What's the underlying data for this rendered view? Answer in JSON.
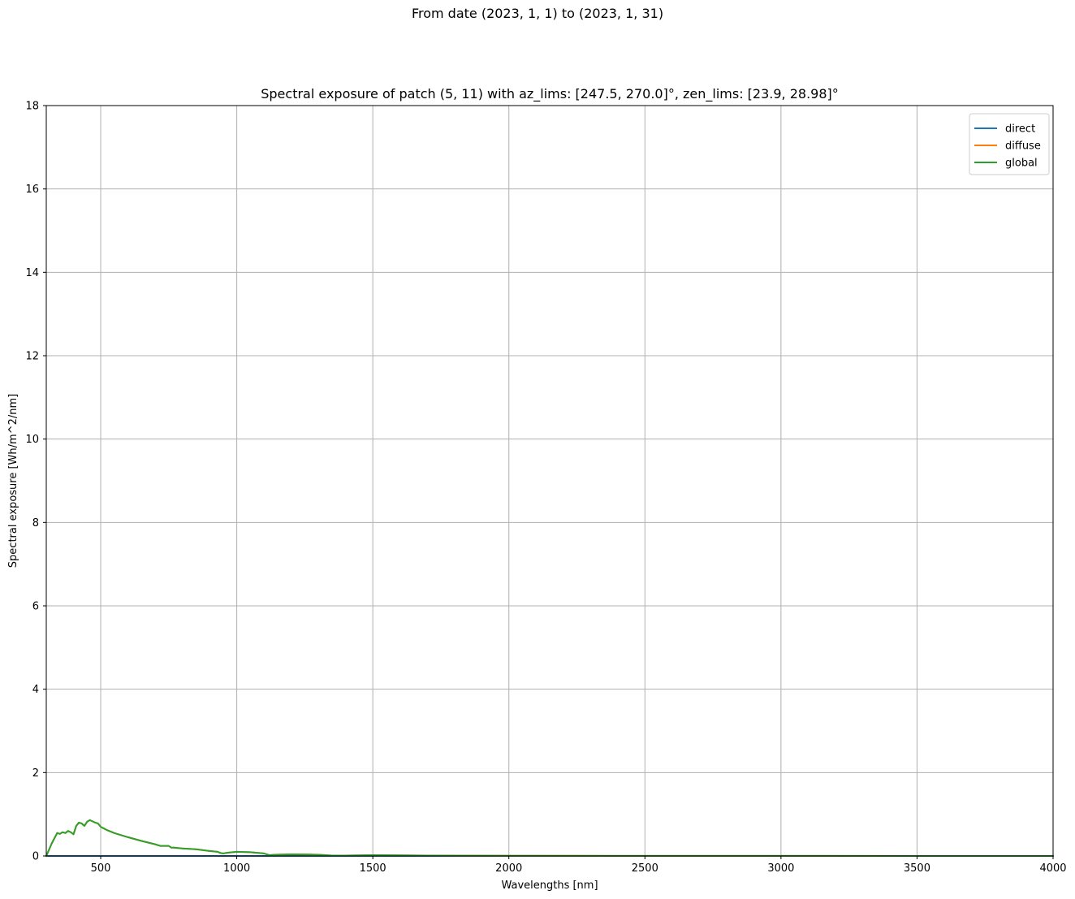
{
  "suptitle": "From date (2023, 1, 1) to (2023, 1, 31)",
  "chart_data": {
    "type": "line",
    "title": "Spectral exposure of patch (5, 11) with az_lims: [247.5, 270.0]°, zen_lims: [23.9, 28.98]°",
    "xlabel": "Wavelengths [nm]",
    "ylabel": "Spectral exposure [Wh/m^2/nm]",
    "xlim": [
      300,
      4000
    ],
    "ylim": [
      0,
      18
    ],
    "xticks": [
      500,
      1000,
      1500,
      2000,
      2500,
      3000,
      3500,
      4000
    ],
    "yticks": [
      0,
      2,
      4,
      6,
      8,
      10,
      12,
      14,
      16,
      18
    ],
    "grid": true,
    "legend_position": "top-right",
    "colors": {
      "direct": "#1f77b4",
      "diffuse": "#ff7f0e",
      "global": "#2ca02c",
      "grid": "#b0b0b0"
    },
    "series": [
      {
        "name": "direct",
        "x": [
          300,
          1000,
          2000,
          3000,
          4000
        ],
        "y": [
          0,
          0,
          0,
          0,
          0
        ]
      },
      {
        "name": "diffuse",
        "x": [
          300,
          320,
          340,
          350,
          360,
          370,
          380,
          390,
          400,
          410,
          420,
          430,
          440,
          450,
          460,
          470,
          480,
          490,
          500,
          520,
          550,
          600,
          650,
          700,
          720,
          750,
          760,
          770,
          800,
          850,
          900,
          930,
          940,
          950,
          970,
          1000,
          1050,
          1100,
          1120,
          1140,
          1200,
          1300,
          1350,
          1400,
          1500,
          1600,
          1700,
          1800,
          2000,
          2500,
          3000,
          3500,
          4000
        ],
        "y": [
          0,
          0.3,
          0.55,
          0.53,
          0.57,
          0.55,
          0.6,
          0.57,
          0.52,
          0.72,
          0.8,
          0.78,
          0.72,
          0.82,
          0.86,
          0.83,
          0.8,
          0.78,
          0.7,
          0.63,
          0.55,
          0.45,
          0.36,
          0.28,
          0.24,
          0.24,
          0.2,
          0.2,
          0.18,
          0.16,
          0.12,
          0.1,
          0.07,
          0.06,
          0.08,
          0.1,
          0.09,
          0.06,
          0.02,
          0.03,
          0.04,
          0.03,
          0.01,
          0.01,
          0.02,
          0.015,
          0.01,
          0.008,
          0.005,
          0.003,
          0.002,
          0.001,
          0.001
        ]
      },
      {
        "name": "global",
        "x": [
          300,
          320,
          340,
          350,
          360,
          370,
          380,
          390,
          400,
          410,
          420,
          430,
          440,
          450,
          460,
          470,
          480,
          490,
          500,
          520,
          550,
          600,
          650,
          700,
          720,
          750,
          760,
          770,
          800,
          850,
          900,
          930,
          940,
          950,
          970,
          1000,
          1050,
          1100,
          1120,
          1140,
          1200,
          1300,
          1350,
          1400,
          1500,
          1600,
          1700,
          1800,
          2000,
          2500,
          3000,
          3500,
          4000
        ],
        "y": [
          0,
          0.3,
          0.55,
          0.53,
          0.57,
          0.55,
          0.6,
          0.57,
          0.52,
          0.72,
          0.8,
          0.78,
          0.72,
          0.82,
          0.86,
          0.83,
          0.8,
          0.78,
          0.7,
          0.63,
          0.55,
          0.45,
          0.36,
          0.28,
          0.24,
          0.24,
          0.2,
          0.2,
          0.18,
          0.16,
          0.12,
          0.1,
          0.07,
          0.06,
          0.08,
          0.1,
          0.09,
          0.06,
          0.02,
          0.03,
          0.04,
          0.03,
          0.01,
          0.01,
          0.02,
          0.015,
          0.01,
          0.008,
          0.005,
          0.003,
          0.002,
          0.001,
          0.001
        ]
      }
    ]
  }
}
